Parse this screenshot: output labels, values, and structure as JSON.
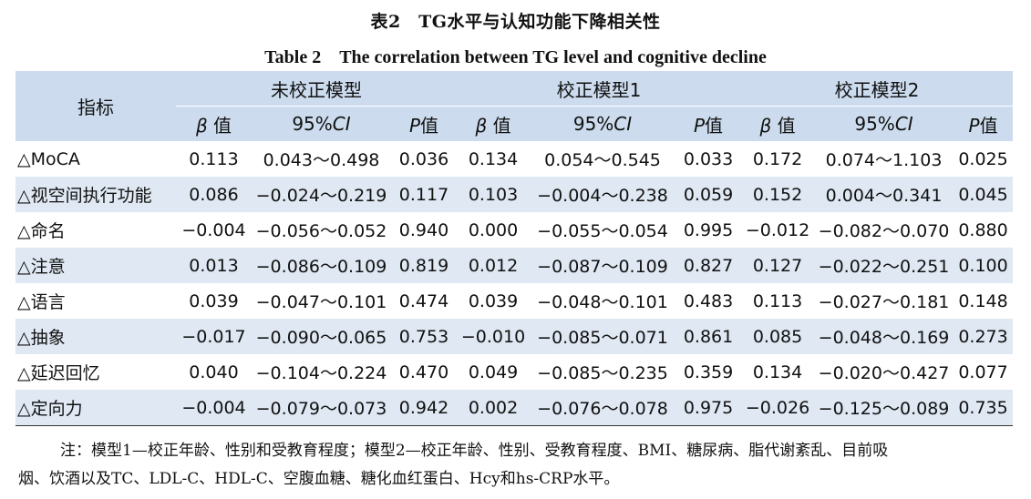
{
  "title_cn": "表2　TG水平与认知功能下降相关性",
  "title_en": "Table 2　The correlation between TG level and cognitive decline",
  "header": {
    "indicator": "指标",
    "groups": [
      "未校正模型",
      "校正模型1",
      "校正模型2"
    ],
    "sub": {
      "beta_symbol": "β",
      "beta_suffix": " 值",
      "ci_prefix": "95%",
      "ci_ital": "CI",
      "p_ital": "P",
      "p_suffix": "值"
    }
  },
  "rows": [
    {
      "label": "△MoCA",
      "v": [
        "0.113",
        "0.043～0.498",
        "0.036",
        "0.134",
        "0.054～0.545",
        "0.033",
        "0.172",
        "0.074～1.103",
        "0.025"
      ]
    },
    {
      "label": "△视空间执行功能",
      "v": [
        "0.086",
        "−0.024～0.219",
        "0.117",
        "0.103",
        "−0.004～0.238",
        "0.059",
        "0.152",
        "0.004～0.341",
        "0.045"
      ]
    },
    {
      "label": "△命名",
      "v": [
        "−0.004",
        "−0.056～0.052",
        "0.940",
        "0.000",
        "−0.055～0.054",
        "0.995",
        "−0.012",
        "−0.082～0.070",
        "0.880"
      ]
    },
    {
      "label": "△注意",
      "v": [
        "0.013",
        "−0.086～0.109",
        "0.819",
        "0.012",
        "−0.087～0.109",
        "0.827",
        "0.127",
        "−0.022～0.251",
        "0.100"
      ]
    },
    {
      "label": "△语言",
      "v": [
        "0.039",
        "−0.047～0.101",
        "0.474",
        "0.039",
        "−0.048～0.101",
        "0.483",
        "0.113",
        "−0.027～0.181",
        "0.148"
      ]
    },
    {
      "label": "△抽象",
      "v": [
        "−0.017",
        "−0.090～0.065",
        "0.753",
        "−0.010",
        "−0.085～0.071",
        "0.861",
        "0.085",
        "−0.048～0.169",
        "0.273"
      ]
    },
    {
      "label": "△延迟回忆",
      "v": [
        "0.040",
        "−0.104～0.224",
        "0.470",
        "0.049",
        "−0.085～0.235",
        "0.359",
        "0.134",
        "−0.020～0.427",
        "0.077"
      ]
    },
    {
      "label": "△定向力",
      "v": [
        "−0.004",
        "−0.079～0.073",
        "0.942",
        "0.002",
        "−0.076～0.078",
        "0.975",
        "−0.026",
        "−0.125～0.089",
        "0.735"
      ]
    }
  ],
  "note": {
    "line1": "注：模型1—校正年龄、性别和受教育程度；模型2—校正年龄、性别、受教育程度、BMI、糖尿病、脂代谢紊乱、目前吸",
    "line2": "烟、饮酒以及TC、LDL-C、HDL-C、空腹血糖、糖化血红蛋白、Hcy和hs-CRP水平。"
  }
}
